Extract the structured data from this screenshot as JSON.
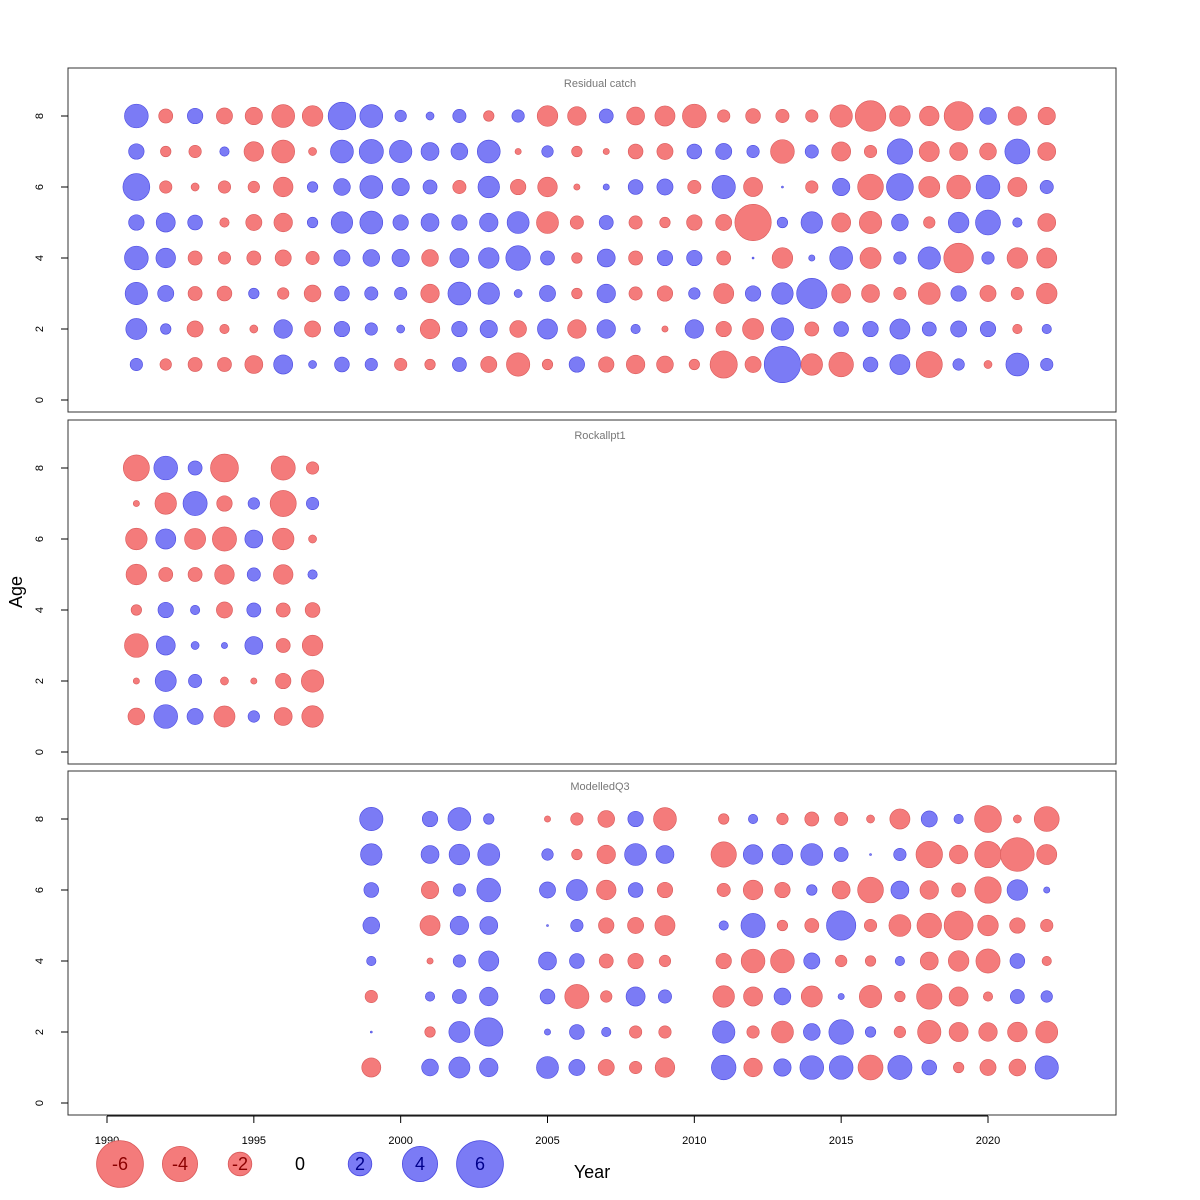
{
  "chart_data": {
    "type": "scatter",
    "subtype": "bubble",
    "xlabel": "Year",
    "ylabel": "Age",
    "xlim": [
      1990,
      2022
    ],
    "ylim": [
      0,
      8
    ],
    "x_ticks": [
      "1990",
      "1995",
      "2000",
      "2005",
      "2010",
      "2015",
      "2020"
    ],
    "y_ticks": [
      "0",
      "2",
      "4",
      "6",
      "8"
    ],
    "colors": {
      "positive": "#7b7bf5",
      "negative": "#f47b7b"
    },
    "legend": {
      "placement": "bottom-left",
      "entries": [
        {
          "label": "-6",
          "value": -6
        },
        {
          "label": "-4",
          "value": -4
        },
        {
          "label": "-2",
          "value": -2
        },
        {
          "label": "0",
          "value": 0
        },
        {
          "label": "2",
          "value": 2
        },
        {
          "label": "4",
          "value": 4
        },
        {
          "label": "6",
          "value": 6
        }
      ]
    },
    "panels": [
      {
        "title": "Residual catch",
        "years": [
          1991,
          1992,
          1993,
          1994,
          1995,
          1996,
          1997,
          1998,
          1999,
          2000,
          2001,
          2002,
          2003,
          2004,
          2005,
          2006,
          2007,
          2008,
          2009,
          2010,
          2011,
          2012,
          2013,
          2014,
          2015,
          2016,
          2017,
          2018,
          2019,
          2020,
          2021,
          2022
        ],
        "residuals": {
          "8": [
            2.6,
            -0.8,
            1.0,
            -1.1,
            -1.3,
            -2.4,
            -1.9,
            3.6,
            2.4,
            0.5,
            0.2,
            0.7,
            -0.4,
            0.6,
            -1.9,
            -1.5,
            0.8,
            -1.4,
            -1.8,
            -2.6,
            -0.6,
            -0.9,
            -0.7,
            -0.6,
            -2.3,
            -4.5,
            -1.9,
            -1.7,
            -4.0,
            1.2,
            -1.5,
            -1.3
          ],
          "7": [
            1.0,
            -0.4,
            -0.6,
            0.3,
            -1.7,
            -2.4,
            -0.2,
            2.4,
            2.7,
            2.3,
            1.4,
            1.2,
            2.4,
            -0.1,
            0.5,
            -0.4,
            -0.1,
            -0.9,
            -1.1,
            0.9,
            1.1,
            0.6,
            -2.6,
            0.7,
            -1.6,
            -0.6,
            3.0,
            -1.8,
            -1.4,
            -1.2,
            2.9,
            -1.4
          ],
          "6": [
            3.4,
            -0.6,
            -0.2,
            -0.6,
            -0.5,
            -1.7,
            0.4,
            1.2,
            2.4,
            1.3,
            0.8,
            -0.7,
            2.1,
            -1.0,
            -1.7,
            -0.1,
            0.1,
            0.9,
            1.1,
            -0.7,
            2.5,
            -1.6,
            0.0,
            -0.6,
            1.3,
            -3.1,
            3.4,
            -2.0,
            -2.6,
            2.6,
            -1.6,
            0.7
          ],
          "5": [
            1.0,
            1.6,
            0.9,
            -0.3,
            -1.1,
            -1.5,
            0.4,
            2.1,
            2.4,
            1.0,
            1.4,
            1.0,
            1.5,
            2.2,
            -2.2,
            -0.7,
            0.8,
            -0.7,
            -0.4,
            -1.0,
            -1.1,
            -6.5,
            0.4,
            2.1,
            -1.6,
            -2.3,
            1.2,
            -0.5,
            1.9,
            2.9,
            0.3,
            -1.4
          ],
          "4": [
            2.6,
            1.7,
            -0.8,
            -0.6,
            -0.8,
            -1.1,
            -0.7,
            1.1,
            1.2,
            1.3,
            -1.2,
            1.6,
            1.9,
            2.8,
            0.8,
            -0.4,
            1.4,
            -0.8,
            1.0,
            1.0,
            -0.8,
            0.0,
            -1.9,
            0.1,
            2.4,
            -2.0,
            0.6,
            2.3,
            -4.2,
            0.6,
            -1.9,
            -1.8
          ],
          "3": [
            2.3,
            1.1,
            -0.8,
            -0.9,
            0.4,
            -0.5,
            -1.2,
            0.9,
            0.7,
            0.6,
            -1.5,
            2.4,
            2.1,
            0.2,
            1.1,
            -0.4,
            1.5,
            -0.7,
            -1.0,
            0.5,
            -1.8,
            1.0,
            2.1,
            4.4,
            -1.6,
            -1.4,
            -0.6,
            -2.2,
            1.0,
            -1.1,
            -0.6,
            -1.9
          ],
          "2": [
            2.0,
            0.4,
            -1.1,
            -0.3,
            -0.2,
            1.5,
            -1.1,
            1.0,
            0.6,
            0.2,
            -1.7,
            1.0,
            1.3,
            -1.2,
            1.8,
            -1.5,
            1.5,
            0.3,
            -0.1,
            1.5,
            -1.0,
            -2.0,
            2.3,
            -0.8,
            0.9,
            1.0,
            1.8,
            0.8,
            1.1,
            1.0,
            -0.3,
            0.3
          ],
          "1": [
            0.6,
            -0.5,
            -0.8,
            -0.8,
            -1.4,
            1.6,
            0.2,
            0.9,
            0.6,
            -0.6,
            -0.4,
            0.8,
            -1.1,
            -2.5,
            -0.4,
            1.0,
            -1.0,
            -1.5,
            -1.2,
            -0.4,
            -3.5,
            -1.1,
            6.5,
            -2.1,
            -2.8,
            0.9,
            1.8,
            -3.2,
            0.5,
            -0.2,
            2.4,
            0.6
          ]
        }
      },
      {
        "title": "Rockallpt1",
        "years": [
          1991,
          1992,
          1993,
          1994,
          1995,
          1996,
          1997
        ],
        "residuals": {
          "8": [
            -3.2,
            2.6,
            0.8,
            -3.7,
            null,
            -2.7,
            -0.6
          ],
          "7": [
            -0.1,
            -2.1,
            2.7,
            -1.0,
            0.5,
            -3.2,
            0.6
          ],
          "6": [
            -2.1,
            1.8,
            -2.0,
            -2.7,
            1.4,
            -2.1,
            -0.2
          ],
          "5": [
            -1.9,
            -0.8,
            -0.8,
            -1.7,
            0.7,
            -1.7,
            0.3
          ],
          "4": [
            -0.4,
            1.0,
            0.3,
            -1.1,
            0.8,
            -0.8,
            -0.9
          ],
          "3": [
            -2.6,
            1.6,
            0.2,
            0.1,
            1.4,
            -0.8,
            -1.9
          ],
          "2": [
            -0.1,
            2.0,
            0.7,
            -0.2,
            -0.1,
            -1.0,
            -2.3
          ],
          "1": [
            -1.2,
            2.6,
            1.1,
            -2.0,
            0.5,
            -1.4,
            -2.1
          ]
        }
      },
      {
        "title": "ModelledQ3",
        "years": [
          1999,
          2001,
          2002,
          2003,
          2005,
          2006,
          2007,
          2008,
          2009,
          2011,
          2012,
          2013,
          2014,
          2015,
          2016,
          2017,
          2018,
          2019,
          2020,
          2021,
          2022
        ],
        "residuals": {
          "8": [
            2.5,
            1.0,
            2.4,
            0.4,
            -0.1,
            -0.6,
            -1.2,
            1.0,
            -2.4,
            -0.4,
            0.3,
            -0.5,
            -0.8,
            -0.7,
            -0.2,
            -1.8,
            1.1,
            0.3,
            -3.4,
            -0.2,
            -2.9
          ],
          "7": [
            2.1,
            1.4,
            1.9,
            2.2,
            0.5,
            -0.4,
            -1.5,
            2.2,
            1.4,
            -3.0,
            1.7,
            1.9,
            2.2,
            0.8,
            0.0,
            0.6,
            -3.3,
            -1.5,
            -3.3,
            -5.5,
            -1.8
          ],
          "6": [
            0.9,
            -1.3,
            0.6,
            2.6,
            1.1,
            2.0,
            -1.7,
            0.9,
            -1.0,
            -0.7,
            -1.7,
            -1.0,
            0.4,
            -1.4,
            -3.1,
            1.4,
            -1.5,
            -0.8,
            -3.3,
            1.9,
            0.1
          ],
          "5": [
            1.2,
            -1.8,
            1.5,
            1.4,
            0.0,
            0.6,
            -1.0,
            -1.1,
            -1.8,
            0.3,
            2.7,
            -0.4,
            -0.8,
            4.1,
            -0.6,
            -2.2,
            -2.8,
            -4.0,
            -1.9,
            -1.0,
            -0.6
          ],
          "4": [
            0.3,
            -0.1,
            0.6,
            1.8,
            1.4,
            0.9,
            -0.8,
            -1.0,
            -0.5,
            -1.0,
            -2.6,
            -2.6,
            1.1,
            -0.5,
            -0.4,
            0.3,
            -1.4,
            -1.9,
            -2.7,
            0.9,
            -0.3
          ],
          "3": [
            -0.6,
            0.3,
            0.8,
            1.5,
            0.9,
            -2.7,
            -0.5,
            1.6,
            0.7,
            -2.1,
            -1.6,
            1.2,
            -2.0,
            0.1,
            -2.3,
            -0.4,
            -3.0,
            -1.6,
            -0.3,
            0.8,
            0.5
          ],
          "2": [
            0.0,
            -0.4,
            2.0,
            3.8,
            0.1,
            0.9,
            0.3,
            -0.6,
            -0.6,
            2.3,
            -0.6,
            -2.2,
            1.2,
            2.8,
            0.4,
            -0.5,
            -2.5,
            -1.6,
            -1.5,
            -1.7,
            -2.2
          ],
          "1": [
            -1.6,
            1.2,
            2.0,
            1.5,
            2.2,
            1.1,
            -1.1,
            -0.6,
            -1.7,
            2.8,
            -1.5,
            1.3,
            2.6,
            2.6,
            -2.9,
            2.7,
            0.9,
            -0.4,
            -1.1,
            -1.2,
            2.5
          ]
        }
      }
    ]
  }
}
